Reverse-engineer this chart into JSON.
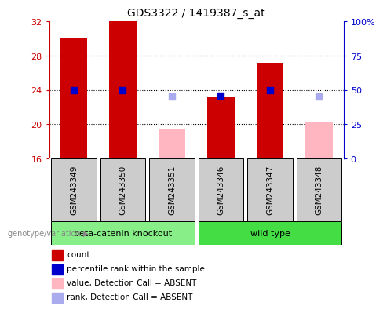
{
  "title": "GDS3322 / 1419387_s_at",
  "samples": [
    "GSM243349",
    "GSM243350",
    "GSM243351",
    "GSM243346",
    "GSM243347",
    "GSM243348"
  ],
  "group1": [
    0,
    1,
    2
  ],
  "group2": [
    3,
    4,
    5
  ],
  "group1_label": "beta-catenin knockout",
  "group2_label": "wild type",
  "group1_color": "#88EE88",
  "group2_color": "#44DD44",
  "ylim_left": [
    16,
    32
  ],
  "ylim_right": [
    0,
    100
  ],
  "yticks_left": [
    16,
    20,
    24,
    28,
    32
  ],
  "yticks_right": [
    0,
    25,
    50,
    75,
    100
  ],
  "ytick_labels_right": [
    "0",
    "25",
    "50",
    "75",
    "100%"
  ],
  "red_bars": [
    30.0,
    32.0,
    null,
    23.1,
    27.2,
    null
  ],
  "blue_dots": [
    24.0,
    24.0,
    null,
    23.3,
    24.0,
    null
  ],
  "pink_bars": [
    null,
    null,
    19.5,
    null,
    null,
    20.2
  ],
  "lightblue_dots": [
    null,
    null,
    23.2,
    null,
    null,
    23.2
  ],
  "bar_width": 0.55,
  "red_color": "#CC0000",
  "blue_color": "#0000CC",
  "pink_color": "#FFB6C1",
  "lightblue_color": "#AAAAEE",
  "bg_plot": "#FFFFFF",
  "bg_samples": "#CCCCCC",
  "legend_items": [
    {
      "color": "#CC0000",
      "label": "count"
    },
    {
      "color": "#0000CC",
      "label": "percentile rank within the sample"
    },
    {
      "color": "#FFB6C1",
      "label": "value, Detection Call = ABSENT"
    },
    {
      "color": "#AAAAEE",
      "label": "rank, Detection Call = ABSENT"
    }
  ],
  "genotype_label": "genotype/variation"
}
